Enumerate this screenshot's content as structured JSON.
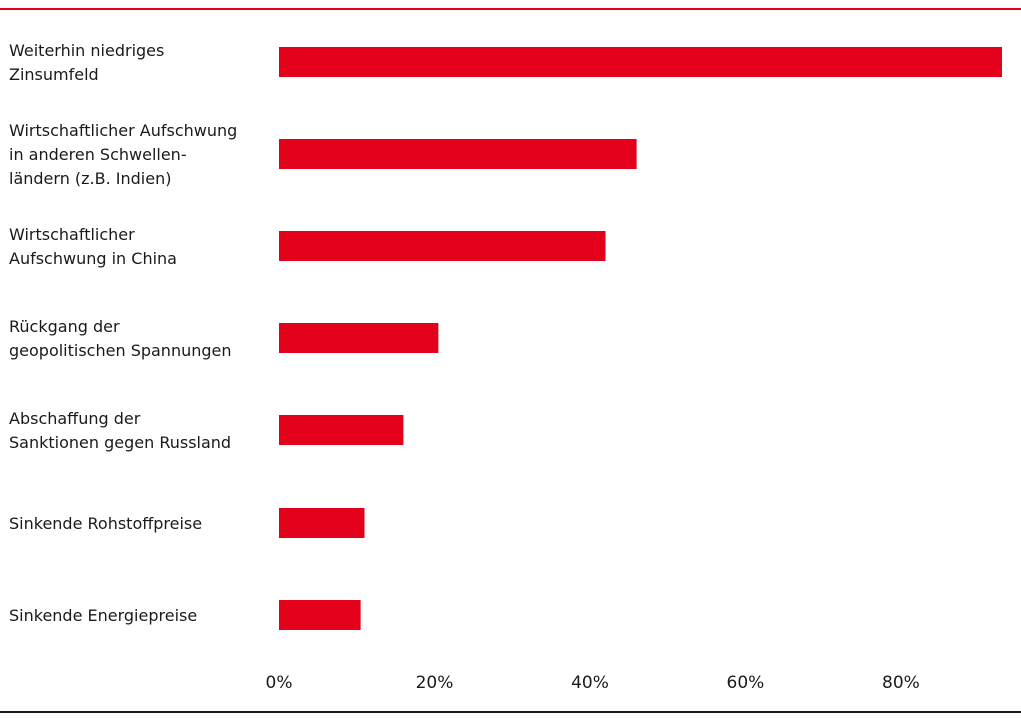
{
  "colors": {
    "bar": "#e2001a",
    "rule_top": "#e2001a",
    "rule_bottom": "#1a1a1a"
  },
  "chart_data": {
    "type": "bar",
    "orientation": "horizontal",
    "categories": [
      [
        "Weiterhin niedriges",
        "Zinsumfeld"
      ],
      [
        "Wirtschaftlicher Aufschwung",
        "in anderen Schwellen-",
        "ländern (z.B. Indien)"
      ],
      [
        "Wirtschaftlicher",
        "Aufschwung in China"
      ],
      [
        "Rückgang der",
        "geopolitischen Spannungen"
      ],
      [
        "Abschaffung der",
        "Sanktionen gegen Russland"
      ],
      [
        "Sinkende Rohstoffpreise"
      ],
      [
        "Sinkende Energiepreise"
      ]
    ],
    "values": [
      93,
      46,
      42,
      20.5,
      16,
      11,
      10.5
    ],
    "xlim": [
      0,
      93
    ],
    "xticks": [
      0,
      20,
      40,
      60,
      80
    ],
    "xtick_labels": [
      "0%",
      "20%",
      "40%",
      "60%",
      "80%"
    ],
    "grid": false,
    "legend": "none",
    "title": "",
    "xlabel": "",
    "ylabel": ""
  }
}
